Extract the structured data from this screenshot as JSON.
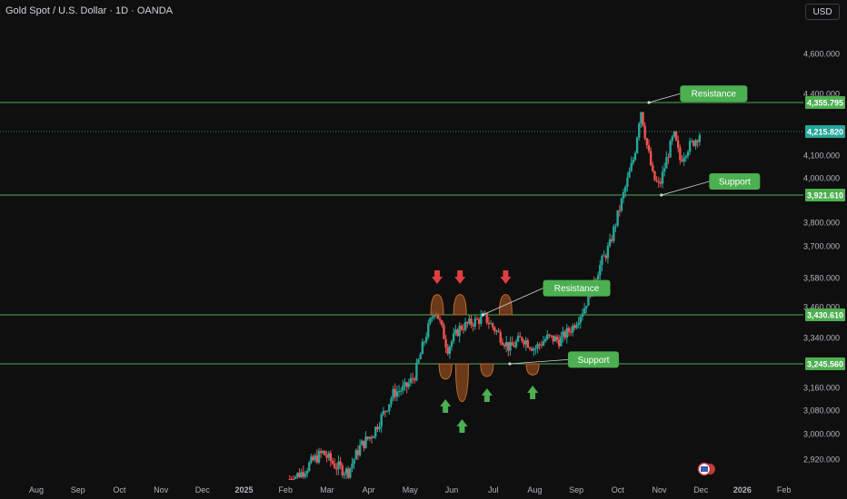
{
  "header": {
    "title": "Gold Spot / U.S. Dollar · 1D · OANDA",
    "currency": "USD"
  },
  "colors": {
    "background": "#0f0f0f",
    "up": "#26a69a",
    "down": "#ef5350",
    "level_line": "#4caf50",
    "label_green": "#4caf50",
    "current_price": "#26a69a",
    "arrow_down": "#e03e3e",
    "arrow_up": "#4caf50",
    "swing_fill": "#8a4a20"
  },
  "chart_data": {
    "type": "candlestick",
    "title": "Gold Spot / U.S. Dollar · 1D · OANDA",
    "xlabel": "",
    "ylabel": "",
    "ylim": [
      2860,
      4700
    ],
    "y_ticks": [
      {
        "value": 4600,
        "label": "4,600.000"
      },
      {
        "value": 4400,
        "label": "4,400.000"
      },
      {
        "value": 4100,
        "label": "4,100.000"
      },
      {
        "value": 4000,
        "label": "4,000.000"
      },
      {
        "value": 3800,
        "label": "3,800.000"
      },
      {
        "value": 3700,
        "label": "3,700.000"
      },
      {
        "value": 3580,
        "label": "3,580.000"
      },
      {
        "value": 3460,
        "label": "3,460.000"
      },
      {
        "value": 3340,
        "label": "3,340.000"
      },
      {
        "value": 3160,
        "label": "3,160.000"
      },
      {
        "value": 3080,
        "label": "3,080.000"
      },
      {
        "value": 3000,
        "label": "3,000.000"
      },
      {
        "value": 2920,
        "label": "2,920.000"
      }
    ],
    "x_ticks": [
      {
        "label": "Aug",
        "bold": false
      },
      {
        "label": "Sep",
        "bold": false
      },
      {
        "label": "Oct",
        "bold": false
      },
      {
        "label": "Nov",
        "bold": false
      },
      {
        "label": "Dec",
        "bold": false
      },
      {
        "label": "2025",
        "bold": true
      },
      {
        "label": "Feb",
        "bold": false
      },
      {
        "label": "Mar",
        "bold": false
      },
      {
        "label": "Apr",
        "bold": false
      },
      {
        "label": "May",
        "bold": false
      },
      {
        "label": "Jun",
        "bold": false
      },
      {
        "label": "Jul",
        "bold": false
      },
      {
        "label": "Aug",
        "bold": false
      },
      {
        "label": "Sep",
        "bold": false
      },
      {
        "label": "Oct",
        "bold": false
      },
      {
        "label": "Nov",
        "bold": false
      },
      {
        "label": "Dec",
        "bold": false
      },
      {
        "label": "2026",
        "bold": true
      },
      {
        "label": "Feb",
        "bold": false
      }
    ],
    "first_candle_month_index": 6.1,
    "last_candle_month_index": 16.0,
    "price_path": [
      [
        6.1,
        2860
      ],
      [
        6.4,
        2880
      ],
      [
        6.7,
        2920
      ],
      [
        6.9,
        2940
      ],
      [
        7.2,
        2900
      ],
      [
        7.5,
        2880
      ],
      [
        7.8,
        2960
      ],
      [
        8.1,
        3000
      ],
      [
        8.4,
        3080
      ],
      [
        8.6,
        3140
      ],
      [
        8.9,
        3160
      ],
      [
        9.1,
        3200
      ],
      [
        9.4,
        3360
      ],
      [
        9.6,
        3460
      ],
      [
        9.9,
        3300
      ],
      [
        10.2,
        3380
      ],
      [
        10.5,
        3400
      ],
      [
        10.8,
        3420
      ],
      [
        11.1,
        3360
      ],
      [
        11.4,
        3300
      ],
      [
        11.7,
        3340
      ],
      [
        12.0,
        3300
      ],
      [
        12.3,
        3340
      ],
      [
        12.6,
        3330
      ],
      [
        12.9,
        3380
      ],
      [
        13.2,
        3460
      ],
      [
        13.5,
        3600
      ],
      [
        13.8,
        3700
      ],
      [
        14.1,
        3900
      ],
      [
        14.4,
        4100
      ],
      [
        14.55,
        4330
      ],
      [
        14.7,
        4150
      ],
      [
        14.85,
        4000
      ],
      [
        15.0,
        3960
      ],
      [
        15.2,
        4100
      ],
      [
        15.35,
        4200
      ],
      [
        15.5,
        4080
      ],
      [
        15.7,
        4140
      ],
      [
        15.85,
        4170
      ],
      [
        16.0,
        4216
      ]
    ],
    "levels": [
      {
        "value": 4355.795,
        "label": "4,355.795"
      },
      {
        "value": 3921.61,
        "label": "3,921.610"
      },
      {
        "value": 3430.61,
        "label": "3,430.610"
      },
      {
        "value": 3245.56,
        "label": "3,245.560"
      }
    ],
    "current_price": {
      "value": 4215.82,
      "label": "4,215.820"
    },
    "annotations": [
      {
        "text": "Resistance",
        "target": [
          14.75,
          4355.795
        ],
        "label_pos": [
          15.5,
          4440
        ]
      },
      {
        "text": "Support",
        "target": [
          15.05,
          3921.61
        ],
        "label_pos": [
          16.2,
          4020
        ]
      },
      {
        "text": "Resistance",
        "target": [
          10.75,
          3430.61
        ],
        "label_pos": [
          12.2,
          3570
        ]
      },
      {
        "text": "Support",
        "target": [
          11.4,
          3245.56
        ],
        "label_pos": [
          12.8,
          3290
        ]
      }
    ],
    "swing_highs": [
      {
        "x": 9.65,
        "peak": 3510,
        "base": 3430.61
      },
      {
        "x": 10.2,
        "peak": 3510,
        "base": 3430.61
      },
      {
        "x": 11.3,
        "peak": 3510,
        "base": 3430.61
      }
    ],
    "swing_lows": [
      {
        "x": 9.85,
        "trough": 3190,
        "base": 3245.56
      },
      {
        "x": 10.25,
        "trough": 3110,
        "base": 3245.56
      },
      {
        "x": 10.85,
        "trough": 3200,
        "base": 3245.56
      },
      {
        "x": 11.95,
        "trough": 3205,
        "base": 3245.56
      }
    ],
    "arrows_down": [
      9.65,
      10.2,
      11.3
    ],
    "arrows_up": [
      9.85,
      10.25,
      10.85,
      11.95
    ],
    "legend": "none",
    "grid": false
  }
}
